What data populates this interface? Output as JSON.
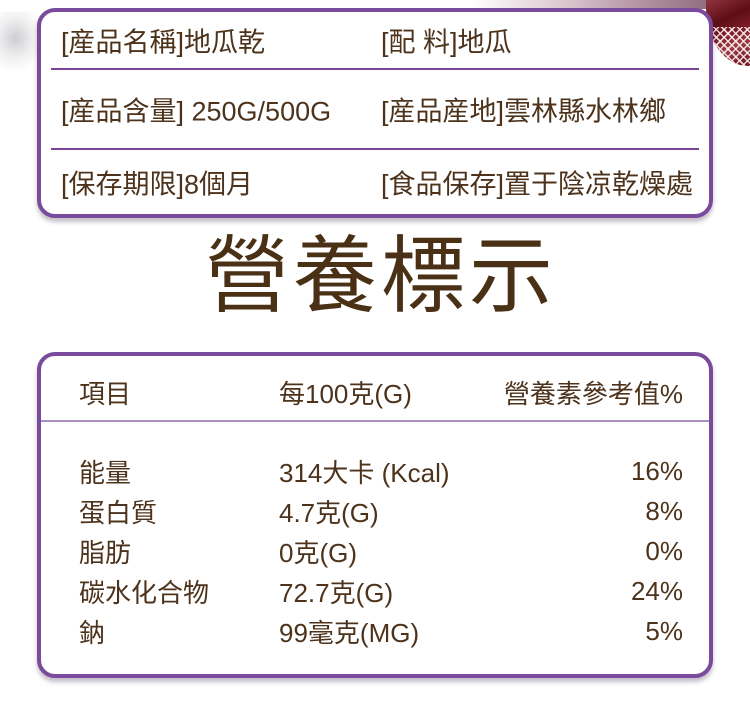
{
  "theme": {
    "border_purple": "#7a4a9d",
    "divider_purple": "#7a4396",
    "divider_light": "#a98fc2",
    "text_brown": "#4d331c",
    "photo_red": "#6b1119"
  },
  "info_box": {
    "rows": [
      {
        "left": "[産品名稱]地瓜乾",
        "right": "[配 料]地瓜"
      },
      {
        "left": "[産品含量] 250G/500G",
        "right": "[産品産地]雲林縣水林鄉"
      },
      {
        "left": "[保存期限]8個月",
        "right": "[食品保存]置于陰凉乾燥處"
      }
    ]
  },
  "title": {
    "text": "營養標示"
  },
  "nutrition": {
    "headers": {
      "item": "項目",
      "per100": "每100克(G)",
      "nrv": "營養素參考值%"
    },
    "rows": [
      {
        "item": "能量",
        "per100": "314大卡 (Kcal)",
        "nrv": "16%"
      },
      {
        "item": "蛋白質",
        "per100": "4.7克(G)",
        "nrv": "8%"
      },
      {
        "item": "脂肪",
        "per100": "0克(G)",
        "nrv": "0%"
      },
      {
        "item": "碳水化合物",
        "per100": "72.7克(G)",
        "nrv": "24%"
      },
      {
        "item": "鈉",
        "per100": "99毫克(MG)",
        "nrv": "5%"
      }
    ]
  }
}
